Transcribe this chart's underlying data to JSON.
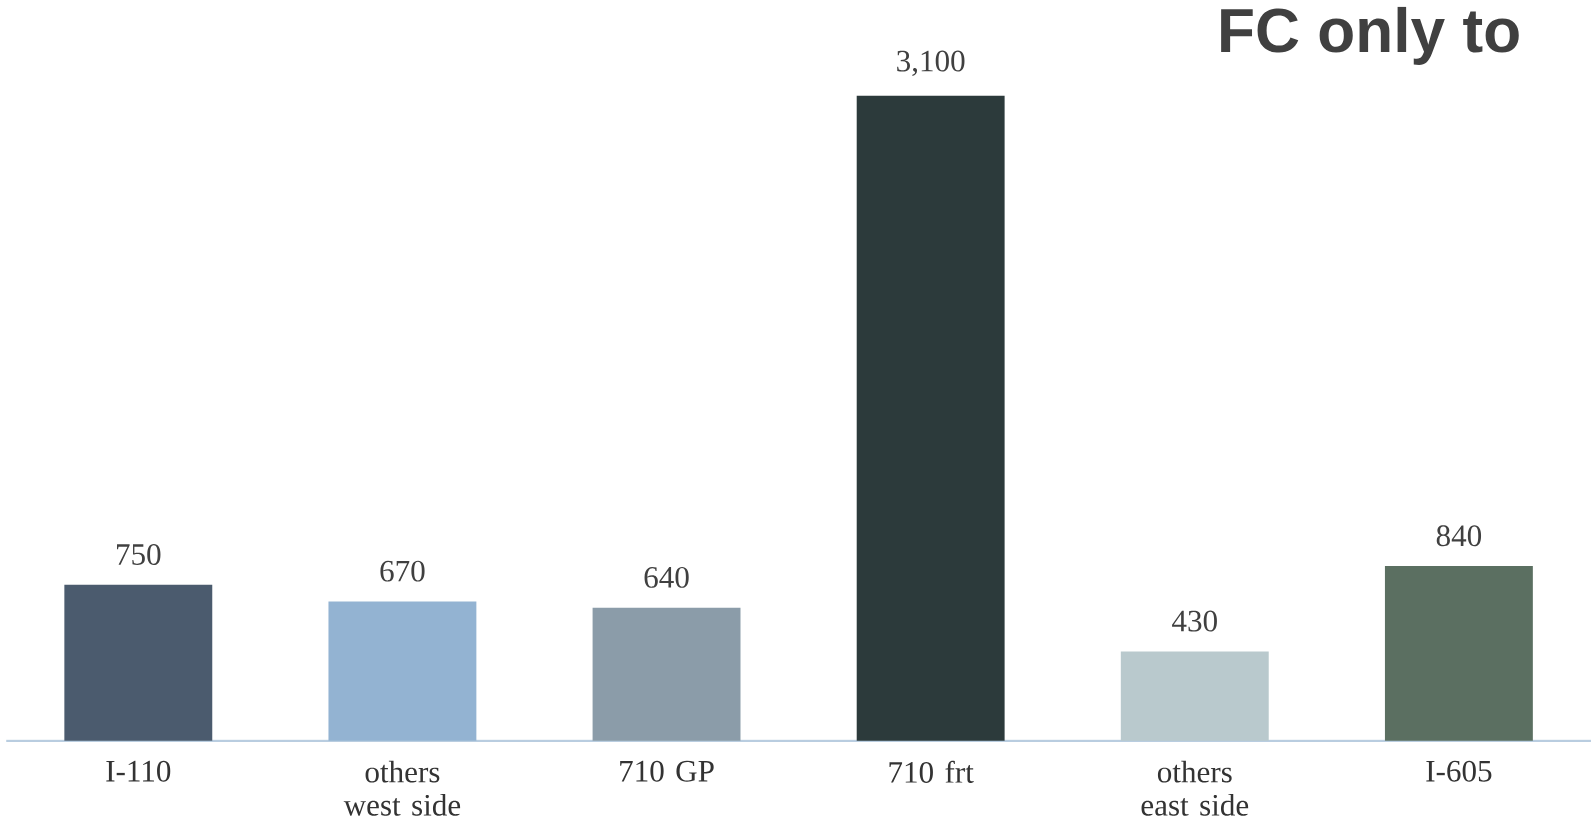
{
  "chart_data": {
    "type": "bar",
    "title": "FC only to",
    "categories": [
      "I-110",
      "others west side",
      "710 GP",
      "710 frt",
      "others east side",
      "I-605"
    ],
    "values": [
      750,
      670,
      640,
      3100,
      430,
      840
    ],
    "colors": [
      "#4b5b6e",
      "#93b3d2",
      "#8b9ca9",
      "#2c3a3b",
      "#b9c9cd",
      "#5b6f61"
    ],
    "value_labels": [
      "750",
      "670",
      "640",
      "3,100",
      "430",
      "840"
    ]
  }
}
